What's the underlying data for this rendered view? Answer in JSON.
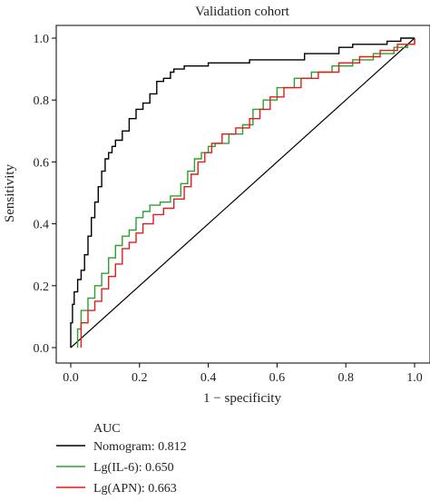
{
  "chart_data": {
    "type": "line",
    "title": "Validation cohort",
    "xlabel": "1 − specificity",
    "ylabel": "Sensitivity",
    "xlim": [
      0,
      1
    ],
    "ylim": [
      0,
      1
    ],
    "xticks": [
      "0.0",
      "0.2",
      "0.4",
      "0.6",
      "0.8",
      "1.0"
    ],
    "yticks": [
      "0.0",
      "0.2",
      "0.4",
      "0.6",
      "0.8",
      "1.0"
    ],
    "legend": {
      "title": "AUC",
      "placement": "below"
    },
    "reference_line": {
      "x": [
        0,
        1
      ],
      "y": [
        0,
        1
      ],
      "color": "#000000"
    },
    "series": [
      {
        "name": "Nomogram: 0.812",
        "color": "#000000",
        "x": [
          0.0,
          0.0,
          0.005,
          0.005,
          0.01,
          0.01,
          0.02,
          0.02,
          0.03,
          0.03,
          0.04,
          0.04,
          0.05,
          0.05,
          0.06,
          0.06,
          0.07,
          0.07,
          0.08,
          0.08,
          0.09,
          0.09,
          0.1,
          0.1,
          0.11,
          0.11,
          0.12,
          0.12,
          0.13,
          0.13,
          0.15,
          0.15,
          0.17,
          0.17,
          0.19,
          0.19,
          0.21,
          0.21,
          0.23,
          0.23,
          0.25,
          0.25,
          0.27,
          0.27,
          0.29,
          0.29,
          0.3,
          0.3,
          0.31,
          0.31,
          0.33,
          0.33,
          0.36,
          0.36,
          0.4,
          0.4,
          0.52,
          0.52,
          0.6,
          0.6,
          0.68,
          0.68,
          0.78,
          0.78,
          0.82,
          0.82,
          0.92,
          0.92,
          0.96,
          0.96,
          1.0,
          1.0
        ],
        "y": [
          0.0,
          0.08,
          0.08,
          0.14,
          0.14,
          0.18,
          0.18,
          0.22,
          0.22,
          0.25,
          0.25,
          0.3,
          0.3,
          0.36,
          0.36,
          0.42,
          0.42,
          0.47,
          0.47,
          0.52,
          0.52,
          0.57,
          0.57,
          0.61,
          0.61,
          0.63,
          0.63,
          0.65,
          0.65,
          0.67,
          0.67,
          0.7,
          0.7,
          0.74,
          0.74,
          0.77,
          0.77,
          0.79,
          0.79,
          0.82,
          0.82,
          0.86,
          0.86,
          0.87,
          0.87,
          0.89,
          0.89,
          0.9,
          0.9,
          0.9,
          0.9,
          0.91,
          0.91,
          0.91,
          0.91,
          0.92,
          0.92,
          0.93,
          0.93,
          0.93,
          0.93,
          0.95,
          0.95,
          0.97,
          0.97,
          0.98,
          0.98,
          0.99,
          0.99,
          1.0,
          1.0,
          1.0
        ]
      },
      {
        "name": "Lg(IL-6): 0.650",
        "color": "#2ca02c",
        "x": [
          0.02,
          0.02,
          0.03,
          0.03,
          0.05,
          0.05,
          0.07,
          0.07,
          0.09,
          0.09,
          0.11,
          0.11,
          0.13,
          0.13,
          0.15,
          0.15,
          0.17,
          0.17,
          0.19,
          0.19,
          0.21,
          0.21,
          0.23,
          0.23,
          0.26,
          0.26,
          0.29,
          0.29,
          0.32,
          0.32,
          0.34,
          0.34,
          0.36,
          0.36,
          0.38,
          0.38,
          0.4,
          0.4,
          0.42,
          0.42,
          0.46,
          0.46,
          0.5,
          0.5,
          0.53,
          0.53,
          0.56,
          0.56,
          0.6,
          0.6,
          0.65,
          0.65,
          0.7,
          0.7,
          0.76,
          0.76,
          0.82,
          0.82,
          0.88,
          0.88,
          0.94,
          0.94,
          0.98,
          0.98,
          1.0,
          1.0
        ],
        "y": [
          0.0,
          0.06,
          0.06,
          0.12,
          0.12,
          0.16,
          0.16,
          0.2,
          0.2,
          0.24,
          0.24,
          0.29,
          0.29,
          0.33,
          0.33,
          0.36,
          0.36,
          0.38,
          0.38,
          0.42,
          0.42,
          0.44,
          0.44,
          0.46,
          0.46,
          0.47,
          0.47,
          0.49,
          0.49,
          0.53,
          0.53,
          0.57,
          0.57,
          0.61,
          0.61,
          0.63,
          0.63,
          0.65,
          0.65,
          0.66,
          0.66,
          0.69,
          0.69,
          0.72,
          0.72,
          0.77,
          0.77,
          0.8,
          0.8,
          0.84,
          0.84,
          0.87,
          0.87,
          0.89,
          0.89,
          0.91,
          0.91,
          0.93,
          0.93,
          0.95,
          0.95,
          0.97,
          0.97,
          0.98,
          0.98,
          1.0
        ]
      },
      {
        "name": "Lg(APN): 0.663",
        "color": "#e41a1c",
        "x": [
          0.03,
          0.03,
          0.05,
          0.05,
          0.07,
          0.07,
          0.09,
          0.09,
          0.11,
          0.11,
          0.13,
          0.13,
          0.15,
          0.15,
          0.17,
          0.17,
          0.19,
          0.19,
          0.21,
          0.21,
          0.24,
          0.24,
          0.27,
          0.27,
          0.3,
          0.3,
          0.33,
          0.33,
          0.35,
          0.35,
          0.37,
          0.37,
          0.39,
          0.39,
          0.41,
          0.41,
          0.44,
          0.44,
          0.48,
          0.48,
          0.52,
          0.52,
          0.55,
          0.55,
          0.58,
          0.58,
          0.62,
          0.62,
          0.67,
          0.67,
          0.72,
          0.72,
          0.78,
          0.78,
          0.84,
          0.84,
          0.9,
          0.9,
          0.95,
          0.95,
          1.0,
          1.0
        ],
        "y": [
          0.0,
          0.08,
          0.08,
          0.12,
          0.12,
          0.15,
          0.15,
          0.19,
          0.19,
          0.23,
          0.23,
          0.27,
          0.27,
          0.32,
          0.32,
          0.34,
          0.34,
          0.37,
          0.37,
          0.4,
          0.4,
          0.43,
          0.43,
          0.45,
          0.45,
          0.48,
          0.48,
          0.52,
          0.52,
          0.56,
          0.56,
          0.6,
          0.6,
          0.63,
          0.63,
          0.66,
          0.66,
          0.69,
          0.69,
          0.71,
          0.71,
          0.74,
          0.74,
          0.77,
          0.77,
          0.81,
          0.81,
          0.84,
          0.84,
          0.87,
          0.87,
          0.89,
          0.89,
          0.92,
          0.92,
          0.94,
          0.94,
          0.96,
          0.96,
          0.98,
          0.98,
          1.0
        ]
      }
    ]
  }
}
